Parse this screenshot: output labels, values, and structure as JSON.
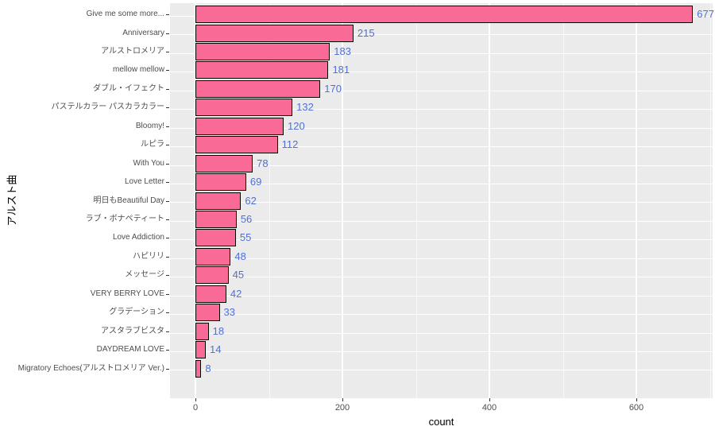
{
  "chart_data": {
    "type": "bar",
    "orientation": "horizontal",
    "title": "",
    "xlabel": "count",
    "ylabel": "アルスト曲",
    "categories": [
      "Give me some more...",
      "Anniversary",
      "アルストロメリア",
      "mellow mellow",
      "ダブル・イフェクト",
      "パステルカラー パスカラカラー",
      "Bloomy!",
      "ルピラ",
      "With You",
      "Love Letter",
      "明日もBeautiful Day",
      "ラブ・ボナペティート",
      "Love Addiction",
      "ハピリリ",
      "メッセージ",
      "VERY BERRY LOVE",
      "グラデーション",
      "アスタラブビスタ",
      "DAYDREAM LOVE",
      "Migratory Echoes(アルストロメリア Ver.)"
    ],
    "values": [
      677,
      215,
      183,
      181,
      170,
      132,
      120,
      112,
      78,
      69,
      62,
      56,
      55,
      48,
      45,
      42,
      33,
      18,
      14,
      8
    ],
    "x_ticks": [
      0,
      200,
      400,
      600
    ],
    "x_minor_ticks": [
      100,
      300,
      500,
      700
    ],
    "xlim": [
      0,
      710
    ],
    "grid": true,
    "legend": false,
    "value_labels_shown": true,
    "colors": {
      "bar_fill": "#FA6A96",
      "bar_border": "#000000",
      "value_label": "#4F6FD8",
      "panel_background": "#EBEBEB",
      "gridline": "#FFFFFF",
      "axis_tick_label": "#4D4D4D",
      "axis_title": "#000000",
      "tick_mark": "#333333"
    }
  }
}
